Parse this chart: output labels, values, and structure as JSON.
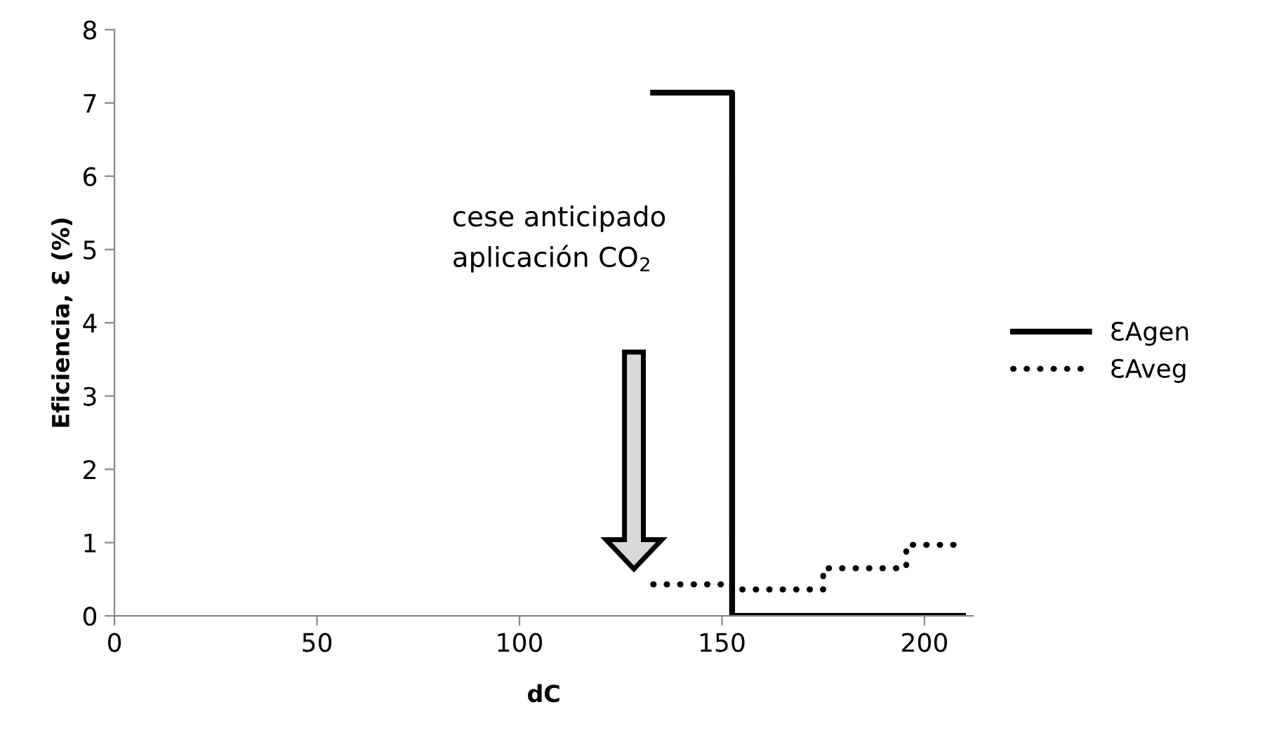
{
  "chart_data": {
    "type": "step",
    "xlabel": "dC",
    "ylabel": "Eficiencia, Ɛ (%)",
    "xlim": [
      0,
      212
    ],
    "xticks": [
      0,
      50,
      100,
      150,
      200
    ],
    "ylim": [
      0,
      8
    ],
    "yticks": [
      0,
      1,
      2,
      3,
      4,
      5,
      6,
      7,
      8
    ],
    "grid": false,
    "legend": "right",
    "marker": "none",
    "series": [
      {
        "name": "ƐAgen",
        "color": "#000000",
        "line_style": "solid",
        "x": [
          133,
          152.5,
          209.5
        ],
        "values": [
          7.14,
          0,
          0
        ]
      },
      {
        "name": "ƐAveg",
        "color": "#000000",
        "line_style": "dotted",
        "x": [
          133,
          152.5,
          175,
          195.5,
          209.5
        ],
        "values": [
          0.43,
          0.36,
          0.65,
          0.97,
          0.97
        ]
      }
    ],
    "annotations": [
      "cese anticipado\naplicación CO$_{2}$"
    ]
  }
}
